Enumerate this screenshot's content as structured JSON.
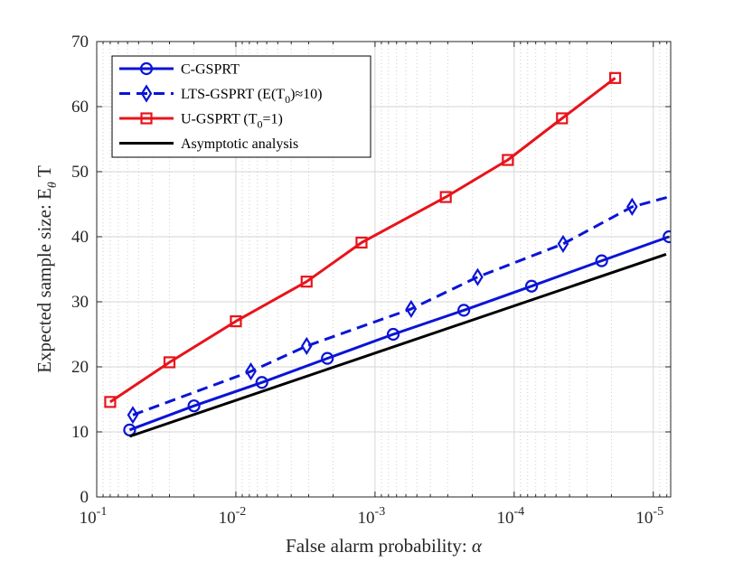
{
  "chart_data": {
    "type": "line",
    "title": "",
    "xlabel": "False alarm probability: α",
    "ylabel": "Expected sample size: E_θ T",
    "xscale": "log",
    "xaxis_reversed": true,
    "xlim": [
      0.1,
      7.5e-06
    ],
    "ylim": [
      0,
      70
    ],
    "yticks": [
      0,
      10,
      20,
      30,
      40,
      50,
      60,
      70
    ],
    "yticklabels": [
      "0",
      "10",
      "20",
      "30",
      "40",
      "50",
      "60",
      "70"
    ],
    "xticks": [
      0.1,
      0.01,
      0.001,
      0.0001,
      1e-05
    ],
    "xticklabels": [
      {
        "base": "10",
        "exp": "-1"
      },
      {
        "base": "10",
        "exp": "-2"
      },
      {
        "base": "10",
        "exp": "-3"
      },
      {
        "base": "10",
        "exp": "-4"
      },
      {
        "base": "10",
        "exp": "-5"
      }
    ],
    "grid": true,
    "legend_position": "top-left",
    "series": [
      {
        "name": "C-GSPRT",
        "legend": {
          "text": "C-GSPRT"
        },
        "color": "#0a14d6",
        "line_style": "solid",
        "marker": "circle",
        "x": [
          0.058,
          0.02,
          0.0065,
          0.0022,
          0.00074,
          0.00023,
          7.5e-05,
          2.35e-05,
          7.7e-06
        ],
        "y": [
          10.3,
          14.0,
          17.6,
          21.3,
          25.0,
          28.7,
          32.4,
          36.3,
          40.0
        ]
      },
      {
        "name": "LTS-GSPRT (E(T0)≈10)",
        "legend": {
          "prefix": "LTS-GSPRT (E(T",
          "sub": "0",
          "suffix": ")≈10)"
        },
        "color": "#0a14d6",
        "line_style": "dashed",
        "marker": "diamond",
        "x": [
          0.055,
          0.0078,
          0.0031,
          0.00055,
          0.000183,
          4.45e-05,
          1.42e-05
        ],
        "y": [
          12.6,
          19.3,
          23.2,
          28.9,
          33.8,
          38.9,
          44.6
        ],
        "extends_to": {
          "x": 7.5e-06,
          "y": 46.2
        }
      },
      {
        "name": "U-GSPRT (T0=1)",
        "legend": {
          "prefix": "U-GSPRT (T",
          "sub": "0",
          "suffix": "=1)"
        },
        "color": "#e8131b",
        "line_style": "solid",
        "marker": "square",
        "x": [
          0.08,
          0.03,
          0.01,
          0.0031,
          0.00125,
          0.00031,
          0.000111,
          4.53e-05,
          1.88e-05
        ],
        "y": [
          14.6,
          20.7,
          27.0,
          33.1,
          39.1,
          46.1,
          51.8,
          58.2,
          64.4
        ]
      },
      {
        "name": "Asymptotic analysis",
        "legend": {
          "text": "Asymptotic analysis"
        },
        "color": "#000000",
        "line_style": "solid",
        "marker": "none",
        "x": [
          0.058,
          8.1e-06
        ],
        "y": [
          9.3,
          37.3
        ]
      }
    ],
    "colors": {
      "blue": "#0a14d6",
      "red": "#e8131b",
      "black": "#000000",
      "grid": "#d6d6d6",
      "axis": "#262626"
    }
  }
}
